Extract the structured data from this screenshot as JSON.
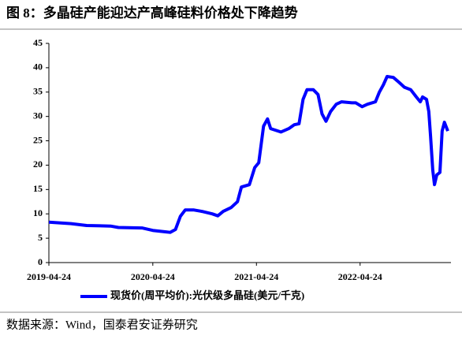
{
  "chart_data": {
    "type": "line",
    "title": "图 8：多晶硅产能迎达产高峰硅料价格处下降趋势",
    "source": "数据来源：Wind，国泰君安证券研究",
    "x": [
      "2019-04-24",
      "2019-07-11",
      "2019-09-04",
      "2019-11-27",
      "2019-12-25",
      "2020-03-17",
      "2020-04-24",
      "2020-06-10",
      "2020-06-24",
      "2020-07-13",
      "2020-07-30",
      "2020-08-16",
      "2020-09-16",
      "2020-10-14",
      "2020-11-19",
      "2020-12-09",
      "2020-12-28",
      "2021-01-25",
      "2021-02-16",
      "2021-03-02",
      "2021-03-30",
      "2021-04-18",
      "2021-05-02",
      "2021-05-19",
      "2021-06-02",
      "2021-06-13",
      "2021-07-19",
      "2021-08-16",
      "2021-09-04",
      "2021-09-21",
      "2021-10-05",
      "2021-10-19",
      "2021-11-10",
      "2021-11-27",
      "2021-12-11",
      "2021-12-25",
      "2022-01-10",
      "2022-01-30",
      "2022-02-18",
      "2022-03-26",
      "2022-04-09",
      "2022-05-01",
      "2022-05-20",
      "2022-06-17",
      "2022-07-01",
      "2022-07-15",
      "2022-07-28",
      "2022-08-19",
      "2022-09-08",
      "2022-09-27",
      "2022-10-19",
      "2022-11-08",
      "2022-11-22",
      "2022-11-30",
      "2022-12-14",
      "2022-12-22",
      "2022-12-28",
      "2023-01-05",
      "2023-01-11",
      "2023-01-19",
      "2023-01-30",
      "2023-02-07",
      "2023-02-15",
      "2023-02-27"
    ],
    "series": [
      {
        "name": "现货价(周平均价):光伏级多晶硅(美元/千克)",
        "color": "#0000ff",
        "values": [
          8.3,
          8.0,
          7.6,
          7.5,
          7.2,
          7.1,
          6.6,
          6.3,
          6.2,
          6.8,
          9.5,
          10.8,
          10.8,
          10.5,
          10.0,
          9.6,
          10.5,
          11.3,
          12.5,
          15.5,
          16.0,
          19.5,
          20.5,
          28.0,
          29.5,
          27.5,
          26.8,
          27.5,
          28.3,
          28.5,
          33.5,
          35.5,
          35.5,
          34.5,
          30.5,
          29.0,
          31.0,
          32.5,
          33.0,
          32.8,
          32.8,
          32.0,
          32.5,
          33.0,
          35.0,
          36.5,
          38.2,
          38.0,
          37.0,
          36.0,
          35.5,
          34.0,
          33.0,
          34.0,
          33.5,
          31.0,
          26.0,
          19.0,
          16.0,
          18.0,
          18.5,
          27.0,
          28.8,
          27.0
        ]
      }
    ],
    "xlim": [
      "2019-04-24",
      "2023-03-10"
    ],
    "xticks": [
      "2019-04-24",
      "2020-04-24",
      "2021-04-24",
      "2022-04-24"
    ],
    "ylim": [
      0,
      45
    ],
    "yticks": [
      0,
      5,
      10,
      15,
      20,
      25,
      30,
      35,
      40,
      45
    ]
  }
}
